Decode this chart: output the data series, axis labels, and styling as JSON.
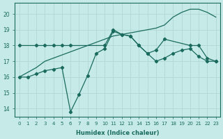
{
  "title": "",
  "xlabel": "Humidex (Indice chaleur)",
  "ylabel": "",
  "bg_color": "#c6eae7",
  "grid_color": "#b0d8d4",
  "line_color": "#1a6b5e",
  "xlim": [
    -0.5,
    23.5
  ],
  "ylim": [
    13.5,
    20.7
  ],
  "yticks": [
    14,
    15,
    16,
    17,
    18,
    19,
    20
  ],
  "xticks": [
    0,
    1,
    2,
    3,
    4,
    5,
    6,
    7,
    8,
    9,
    10,
    11,
    12,
    13,
    14,
    15,
    16,
    17,
    18,
    19,
    20,
    21,
    22,
    23
  ],
  "line1_x": [
    0,
    1,
    2,
    3,
    4,
    5,
    6,
    7,
    8,
    9,
    10,
    11,
    12,
    13,
    14,
    15,
    16,
    17,
    18,
    19,
    20,
    21,
    22,
    23
  ],
  "line1_y": [
    16.0,
    16.3,
    16.6,
    17.0,
    17.2,
    17.4,
    17.6,
    17.8,
    18.0,
    18.2,
    18.4,
    18.6,
    18.7,
    18.8,
    18.9,
    19.0,
    19.1,
    19.3,
    19.8,
    20.1,
    20.3,
    20.3,
    20.1,
    19.8
  ],
  "line2_x": [
    0,
    2,
    3,
    4,
    5,
    6,
    10,
    11,
    12,
    13,
    14,
    15,
    16,
    17,
    20,
    21,
    22,
    23
  ],
  "line2_y": [
    18.0,
    18.0,
    18.0,
    18.0,
    18.0,
    18.0,
    18.0,
    19.0,
    18.7,
    18.6,
    18.0,
    17.5,
    17.7,
    18.4,
    18.0,
    18.0,
    17.2,
    17.0
  ],
  "line3_x": [
    0,
    1,
    2,
    3,
    4,
    5,
    6,
    7,
    8,
    9,
    10,
    11,
    12,
    13,
    14,
    15,
    16,
    17,
    18,
    19,
    20,
    21,
    22,
    23
  ],
  "line3_y": [
    16.0,
    16.0,
    16.2,
    16.4,
    16.5,
    16.6,
    13.8,
    14.9,
    16.1,
    17.5,
    17.8,
    18.9,
    18.7,
    18.6,
    18.0,
    17.5,
    17.0,
    17.2,
    17.5,
    17.7,
    17.8,
    17.3,
    17.0,
    17.0
  ]
}
